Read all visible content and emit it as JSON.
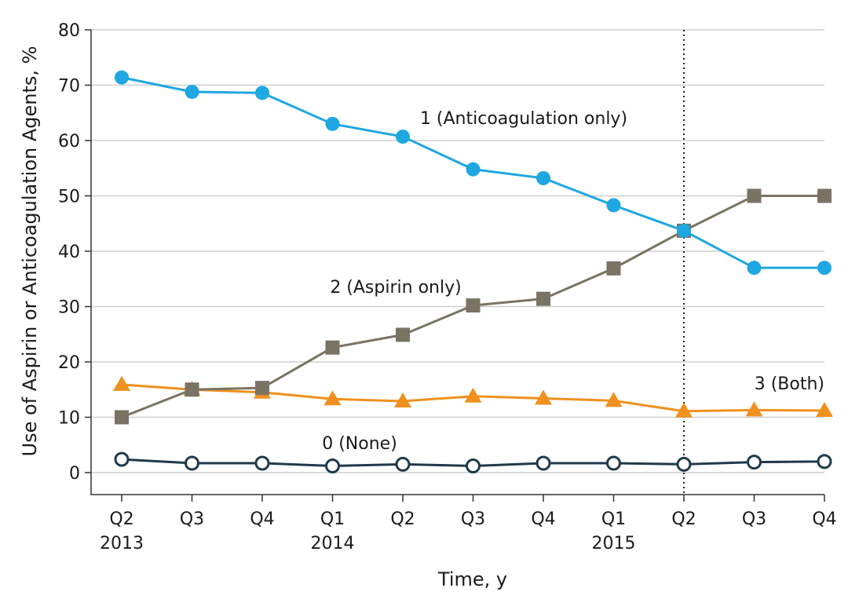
{
  "chart_data": {
    "type": "line",
    "title": "",
    "xlabel": "Time, y",
    "ylabel": "Use of Aspirin or Anticoagulation Agents, %",
    "ylim": [
      0,
      80
    ],
    "yticks": [
      0,
      10,
      20,
      30,
      40,
      50,
      60,
      70,
      80
    ],
    "grid": true,
    "categories": [
      "Q2",
      "Q3",
      "Q4",
      "Q1",
      "Q2",
      "Q3",
      "Q4",
      "Q1",
      "Q2",
      "Q3",
      "Q4"
    ],
    "years": [
      {
        "label": "2013",
        "category_index": 0
      },
      {
        "label": "2014",
        "category_index": 3
      },
      {
        "label": "2015",
        "category_index": 7
      }
    ],
    "reference_line_category_index": 8,
    "series": [
      {
        "name": "1 (Anticoagulation only)",
        "marker": "circle",
        "color": "#1ea7e1",
        "values": [
          71.4,
          68.8,
          68.6,
          63.0,
          60.7,
          54.8,
          53.2,
          48.3,
          43.7,
          37.0,
          37.0
        ],
        "label_position": "above-middle"
      },
      {
        "name": "2 (Aspirin only)",
        "marker": "square",
        "color": "#7a7364",
        "values": [
          10.0,
          15.0,
          15.3,
          22.6,
          24.9,
          30.2,
          31.4,
          36.9,
          43.7,
          50.0,
          50.0
        ],
        "label_position": "above-middle"
      },
      {
        "name": "3 (Both)",
        "marker": "triangle",
        "color": "#f0901e",
        "values": [
          15.9,
          15.0,
          14.5,
          13.3,
          12.9,
          13.8,
          13.4,
          13.0,
          11.1,
          11.3,
          11.2
        ],
        "label_position": "right-end"
      },
      {
        "name": "0 (None)",
        "marker": "open-circle",
        "color": "#1f3a4a",
        "values": [
          2.4,
          1.7,
          1.7,
          1.2,
          1.5,
          1.2,
          1.7,
          1.7,
          1.5,
          1.9,
          2.0
        ],
        "label_position": "above-middle"
      }
    ]
  }
}
